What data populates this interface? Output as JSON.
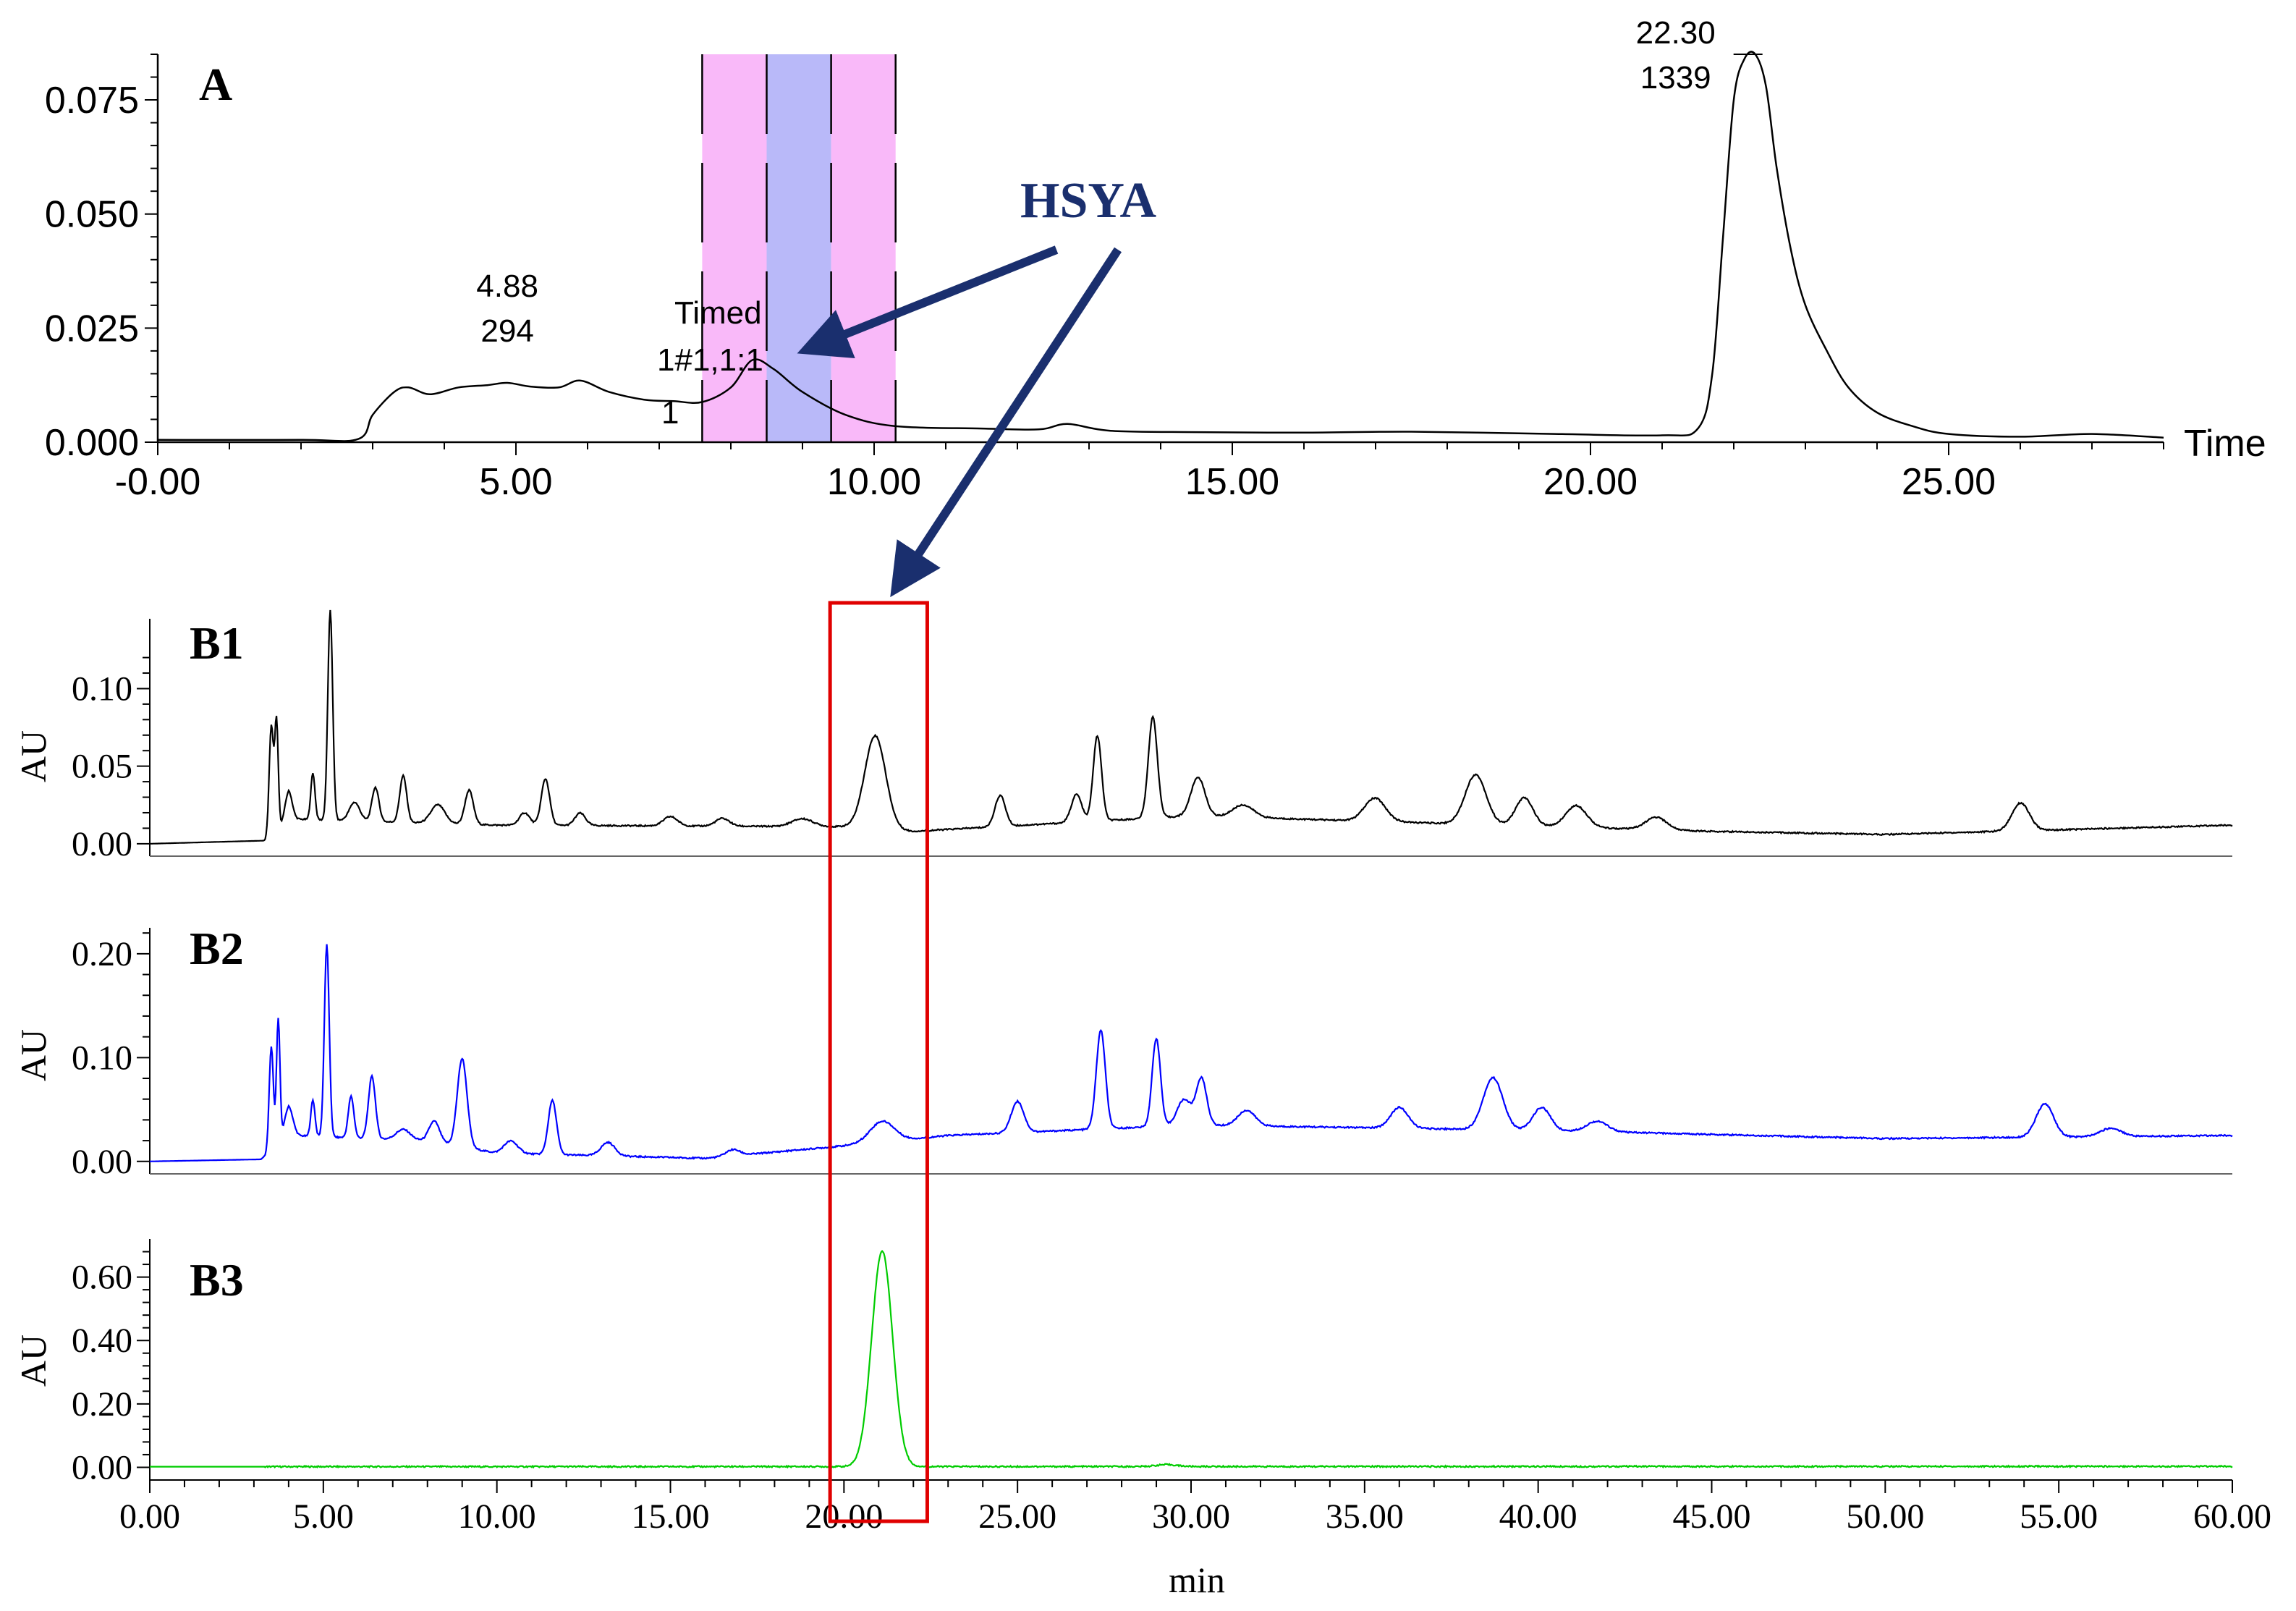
{
  "chart_data": [
    {
      "type": "line",
      "panel": "A",
      "x_axis": {
        "min": 0,
        "max": 28,
        "ticks": [
          0,
          5,
          10,
          15,
          20,
          25
        ],
        "tick_labels": [
          "-0.00",
          "5.00",
          "10.00",
          "15.00",
          "20.00",
          "25.00"
        ],
        "label": "Time"
      },
      "y_axis": {
        "min": 0,
        "max": 0.085,
        "ticks": [
          0,
          0.025,
          0.05,
          0.075
        ],
        "tick_labels": [
          "0.000",
          "0.025",
          "0.050",
          "0.075"
        ]
      },
      "series": [
        {
          "color": "#000000",
          "x": [
            0,
            2,
            2.8,
            3.0,
            3.3,
            3.5,
            3.8,
            4.2,
            4.6,
            4.88,
            5.2,
            5.6,
            5.9,
            6.3,
            6.8,
            7.2,
            7.6,
            8.0,
            8.3,
            8.6,
            9.0,
            9.6,
            10.3,
            11.5,
            12.3,
            12.7,
            13.3,
            14.5,
            16,
            17.5,
            19.5,
            21,
            21.5,
            21.7,
            21.85,
            22.0,
            22.15,
            22.3,
            22.45,
            22.6,
            22.8,
            23.0,
            23.3,
            23.6,
            24.0,
            24.5,
            25.0,
            26.0,
            27.0,
            28.0
          ],
          "y": [
            0.0005,
            0.0005,
            0.0007,
            0.006,
            0.011,
            0.012,
            0.0105,
            0.012,
            0.0125,
            0.013,
            0.0122,
            0.012,
            0.0135,
            0.011,
            0.0093,
            0.009,
            0.0088,
            0.012,
            0.018,
            0.016,
            0.011,
            0.006,
            0.0035,
            0.003,
            0.0028,
            0.004,
            0.0025,
            0.0022,
            0.0021,
            0.0023,
            0.0018,
            0.0015,
            0.003,
            0.015,
            0.045,
            0.075,
            0.084,
            0.085,
            0.078,
            0.06,
            0.042,
            0.03,
            0.02,
            0.012,
            0.0065,
            0.0035,
            0.0018,
            0.0012,
            0.0018,
            0.001
          ]
        }
      ],
      "timed_regions": [
        {
          "start": 7.6,
          "end": 8.5,
          "color": "#f9b9f9"
        },
        {
          "start": 8.5,
          "end": 9.4,
          "color": "#b9b9f9"
        },
        {
          "start": 9.4,
          "end": 10.3,
          "color": "#f9b9f9"
        }
      ],
      "peak_labels": [
        {
          "x": 4.88,
          "y": 0.013,
          "lines": [
            "4.88",
            "294"
          ]
        },
        {
          "x": 22.3,
          "y": 0.085,
          "lines": [
            "22.30",
            "1339"
          ]
        }
      ],
      "timed_text": [
        "Timed",
        "1#1,1:1",
        "1"
      ]
    },
    {
      "type": "line",
      "panel": "B1",
      "x_axis": {
        "min": 0,
        "max": 60
      },
      "y_axis": {
        "min": -0.008,
        "max": 0.145,
        "ticks": [
          0,
          0.05,
          0.1
        ],
        "tick_labels": [
          "0.00",
          "0.05",
          "0.10"
        ],
        "label": "AU"
      },
      "series": [
        {
          "color": "#000000",
          "baseline": [
            [
              0,
              0
            ],
            [
              3.3,
              0.002
            ],
            [
              4,
              0.016
            ],
            [
              10,
              0.012
            ],
            [
              20,
              0.011
            ],
            [
              22,
              0.008
            ],
            [
              30,
              0.018
            ],
            [
              45,
              0.008
            ],
            [
              50,
              0.006
            ],
            [
              60,
              0.012
            ]
          ],
          "peaks": [
            [
              3.5,
              0.07,
              0.06
            ],
            [
              3.65,
              0.07,
              0.05
            ],
            [
              4.0,
              0.018,
              0.1
            ],
            [
              4.7,
              0.03,
              0.06
            ],
            [
              5.2,
              0.135,
              0.07
            ],
            [
              5.9,
              0.012,
              0.15
            ],
            [
              6.5,
              0.022,
              0.1
            ],
            [
              7.3,
              0.03,
              0.1
            ],
            [
              8.3,
              0.012,
              0.2
            ],
            [
              9.2,
              0.022,
              0.12
            ],
            [
              10.8,
              0.008,
              0.15
            ],
            [
              11.4,
              0.03,
              0.12
            ],
            [
              12.4,
              0.008,
              0.15
            ],
            [
              15.0,
              0.006,
              0.2
            ],
            [
              16.5,
              0.005,
              0.2
            ],
            [
              18.8,
              0.005,
              0.3
            ],
            [
              20.9,
              0.06,
              0.3
            ],
            [
              24.5,
              0.02,
              0.15
            ],
            [
              26.7,
              0.018,
              0.15
            ],
            [
              27.3,
              0.055,
              0.12
            ],
            [
              28.9,
              0.065,
              0.13
            ],
            [
              30.2,
              0.025,
              0.2
            ],
            [
              31.5,
              0.008,
              0.3
            ],
            [
              35.3,
              0.015,
              0.3
            ],
            [
              38.2,
              0.032,
              0.3
            ],
            [
              39.6,
              0.018,
              0.25
            ],
            [
              41.1,
              0.014,
              0.3
            ],
            [
              43.4,
              0.008,
              0.3
            ],
            [
              53.9,
              0.018,
              0.25
            ]
          ]
        }
      ]
    },
    {
      "type": "line",
      "panel": "B2",
      "x_axis": {
        "min": 0,
        "max": 60
      },
      "y_axis": {
        "min": -0.012,
        "max": 0.225,
        "ticks": [
          0,
          0.1,
          0.2
        ],
        "tick_labels": [
          "0.00",
          "0.10",
          "0.20"
        ],
        "label": "AU"
      },
      "series": [
        {
          "color": "#0000ff",
          "baseline": [
            [
              0,
              0
            ],
            [
              3.2,
              0.002
            ],
            [
              4,
              0.025
            ],
            [
              8,
              0.02
            ],
            [
              10,
              0.008
            ],
            [
              16,
              0.003
            ],
            [
              20,
              0.015
            ],
            [
              23,
              0.025
            ],
            [
              30,
              0.035
            ],
            [
              40,
              0.03
            ],
            [
              50,
              0.022
            ],
            [
              60,
              0.025
            ]
          ],
          "peaks": [
            [
              3.5,
              0.1,
              0.06
            ],
            [
              3.7,
              0.12,
              0.05
            ],
            [
              4.0,
              0.028,
              0.12
            ],
            [
              4.7,
              0.035,
              0.06
            ],
            [
              5.1,
              0.185,
              0.07
            ],
            [
              5.8,
              0.04,
              0.08
            ],
            [
              6.4,
              0.06,
              0.1
            ],
            [
              7.3,
              0.01,
              0.2
            ],
            [
              8.2,
              0.02,
              0.15
            ],
            [
              9.0,
              0.085,
              0.14
            ],
            [
              10.4,
              0.012,
              0.2
            ],
            [
              11.6,
              0.052,
              0.12
            ],
            [
              13.2,
              0.013,
              0.2
            ],
            [
              16.8,
              0.006,
              0.2
            ],
            [
              21.1,
              0.02,
              0.35
            ],
            [
              25.0,
              0.03,
              0.18
            ],
            [
              27.4,
              0.095,
              0.13
            ],
            [
              29.0,
              0.085,
              0.12
            ],
            [
              29.8,
              0.025,
              0.2
            ],
            [
              30.3,
              0.045,
              0.15
            ],
            [
              31.6,
              0.015,
              0.25
            ],
            [
              36.0,
              0.02,
              0.25
            ],
            [
              38.7,
              0.05,
              0.28
            ],
            [
              40.1,
              0.022,
              0.25
            ],
            [
              41.7,
              0.01,
              0.3
            ],
            [
              54.6,
              0.032,
              0.25
            ],
            [
              56.5,
              0.008,
              0.3
            ]
          ]
        }
      ]
    },
    {
      "type": "line",
      "panel": "B3",
      "x_axis": {
        "min": 0,
        "max": 60,
        "ticks": [
          0,
          5,
          10,
          15,
          20,
          25,
          30,
          35,
          40,
          45,
          50,
          55,
          60
        ],
        "tick_labels": [
          "0.00",
          "5.00",
          "10.00",
          "15.00",
          "20.00",
          "25.00",
          "30.00",
          "35.00",
          "40.00",
          "45.00",
          "50.00",
          "55.00",
          "60.00"
        ],
        "label": "min"
      },
      "y_axis": {
        "min": -0.04,
        "max": 0.72,
        "ticks": [
          0,
          0.2,
          0.4,
          0.6
        ],
        "tick_labels": [
          "0.00",
          "0.20",
          "0.40",
          "0.60"
        ],
        "label": "AU"
      },
      "series": [
        {
          "color": "#00cc00",
          "baseline": [
            [
              0,
              0.002
            ],
            [
              60,
              0.003
            ]
          ],
          "peaks": [
            [
              21.1,
              0.68,
              0.3
            ],
            [
              29.3,
              0.006,
              0.3
            ]
          ]
        }
      ]
    }
  ],
  "panel_labels": {
    "a": "A",
    "b1": "B1",
    "b2": "B2",
    "b3": "B3"
  },
  "annotation": {
    "text": "HSYA",
    "color": "#1a2f6e"
  },
  "highlight_box": {
    "x_start": 19.6,
    "x_end": 22.4,
    "color": "#e00000"
  }
}
